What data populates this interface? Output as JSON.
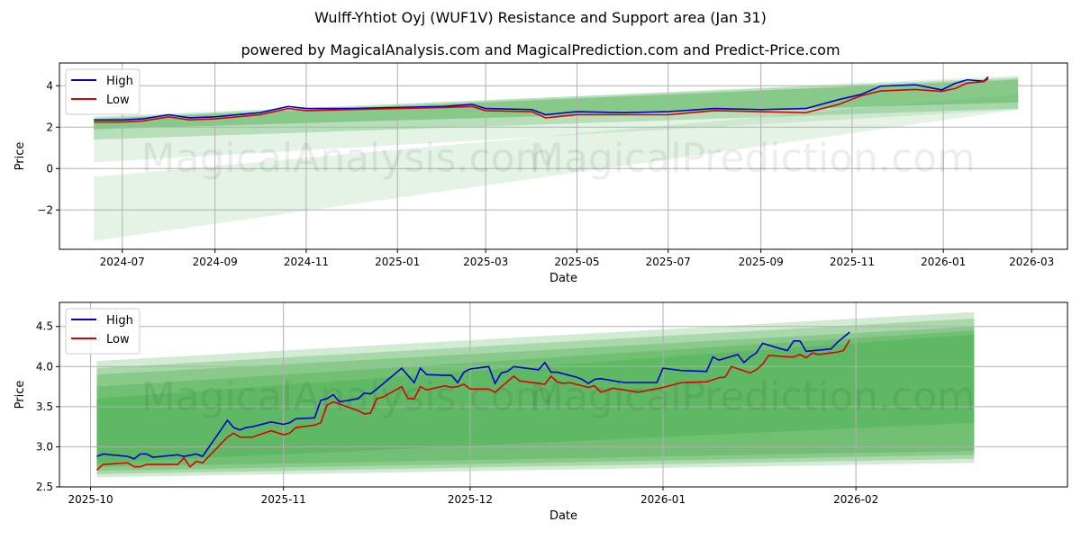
{
  "title": "Wulff-Yhtiot Oyj (WUF1V) Resistance and Support area (Jan 31)",
  "subtitle": "powered by MagicalAnalysis.com and MagicalPrediction.com and Predict-Price.com",
  "watermarks": [
    "MagicalAnalysis.com",
    "MagicalPrediction.com"
  ],
  "colors": {
    "high": "#0000cc",
    "low": "#dd0000",
    "band": "#4caf50"
  },
  "chart_data": [
    {
      "type": "line",
      "xlabel": "Date",
      "ylabel": "Price",
      "ylim": [
        -3.9,
        5.1
      ],
      "xlim": [
        "2024-05-20",
        "2026-03-25"
      ],
      "yticks": [
        -2,
        0,
        2,
        4
      ],
      "xticks": [
        "2024-07",
        "2024-09",
        "2024-11",
        "2025-01",
        "2025-03",
        "2025-05",
        "2025-07",
        "2025-09",
        "2025-11",
        "2026-01",
        "2026-03"
      ],
      "legend": {
        "position": "top-left",
        "entries": [
          "High",
          "Low"
        ]
      },
      "grid": true,
      "bands": [
        {
          "start": "2024-06-12",
          "end": "2026-02-20",
          "from": [
            -3.5,
            -0.4
          ],
          "to": [
            2.85,
            3.6
          ],
          "opacity": 0.15
        },
        {
          "start": "2024-06-12",
          "end": "2026-02-20",
          "from": [
            0.3,
            2.4
          ],
          "to": [
            2.85,
            4.5
          ],
          "opacity": 0.15
        },
        {
          "start": "2024-06-12",
          "end": "2026-02-20",
          "from": [
            1.4,
            2.5
          ],
          "to": [
            2.9,
            4.4
          ],
          "opacity": 0.3
        },
        {
          "start": "2024-06-12",
          "end": "2026-02-20",
          "from": [
            1.9,
            2.4
          ],
          "to": [
            3.2,
            4.3
          ],
          "opacity": 0.45
        }
      ],
      "series": [
        {
          "name": "High",
          "points": [
            [
              "2024-06-12",
              2.35
            ],
            [
              "2024-07-01",
              2.35
            ],
            [
              "2024-07-15",
              2.4
            ],
            [
              "2024-08-01",
              2.6
            ],
            [
              "2024-08-15",
              2.45
            ],
            [
              "2024-09-01",
              2.5
            ],
            [
              "2024-10-01",
              2.7
            ],
            [
              "2024-10-20",
              3.0
            ],
            [
              "2024-11-01",
              2.9
            ],
            [
              "2024-12-01",
              2.9
            ],
            [
              "2025-01-01",
              2.95
            ],
            [
              "2025-02-01",
              3.0
            ],
            [
              "2025-02-20",
              3.1
            ],
            [
              "2025-03-01",
              2.9
            ],
            [
              "2025-04-01",
              2.85
            ],
            [
              "2025-04-10",
              2.6
            ],
            [
              "2025-05-01",
              2.75
            ],
            [
              "2025-06-01",
              2.7
            ],
            [
              "2025-07-01",
              2.75
            ],
            [
              "2025-08-01",
              2.9
            ],
            [
              "2025-09-01",
              2.85
            ],
            [
              "2025-10-01",
              2.9
            ],
            [
              "2025-10-23",
              3.33
            ],
            [
              "2025-11-07",
              3.58
            ],
            [
              "2025-11-20",
              3.98
            ],
            [
              "2025-12-13",
              4.05
            ],
            [
              "2025-12-31",
              3.8
            ],
            [
              "2026-01-09",
              4.12
            ],
            [
              "2026-01-17",
              4.29
            ],
            [
              "2026-01-28",
              4.22
            ],
            [
              "2026-01-31",
              4.43
            ]
          ]
        },
        {
          "name": "Low",
          "points": [
            [
              "2024-06-12",
              2.25
            ],
            [
              "2024-07-01",
              2.25
            ],
            [
              "2024-07-15",
              2.3
            ],
            [
              "2024-08-01",
              2.5
            ],
            [
              "2024-08-15",
              2.35
            ],
            [
              "2024-09-01",
              2.4
            ],
            [
              "2024-10-01",
              2.6
            ],
            [
              "2024-10-20",
              2.9
            ],
            [
              "2024-11-01",
              2.8
            ],
            [
              "2024-12-01",
              2.85
            ],
            [
              "2025-01-01",
              2.9
            ],
            [
              "2025-02-01",
              2.95
            ],
            [
              "2025-02-20",
              3.0
            ],
            [
              "2025-03-01",
              2.8
            ],
            [
              "2025-04-01",
              2.75
            ],
            [
              "2025-04-10",
              2.45
            ],
            [
              "2025-05-01",
              2.6
            ],
            [
              "2025-06-01",
              2.6
            ],
            [
              "2025-07-01",
              2.6
            ],
            [
              "2025-08-01",
              2.8
            ],
            [
              "2025-09-01",
              2.75
            ],
            [
              "2025-10-01",
              2.7
            ],
            [
              "2025-10-23",
              3.1
            ],
            [
              "2025-11-07",
              3.52
            ],
            [
              "2025-11-20",
              3.75
            ],
            [
              "2025-12-13",
              3.82
            ],
            [
              "2025-12-31",
              3.73
            ],
            [
              "2026-01-09",
              3.87
            ],
            [
              "2026-01-17",
              4.13
            ],
            [
              "2026-01-28",
              4.2
            ],
            [
              "2026-01-31",
              4.33
            ]
          ]
        }
      ]
    },
    {
      "type": "line",
      "xlabel": "Date",
      "ylabel": "Price",
      "ylim": [
        2.5,
        4.8
      ],
      "xlim": [
        "2025-09-26",
        "2026-03-07"
      ],
      "yticks": [
        2.5,
        3.0,
        3.5,
        4.0,
        4.5
      ],
      "xticks": [
        "2025-10",
        "2025-11",
        "2025-12",
        "2026-01",
        "2026-02"
      ],
      "legend": {
        "position": "top-left",
        "entries": [
          "High",
          "Low"
        ]
      },
      "grid": true,
      "bands": [
        {
          "start": "2025-10-02",
          "end": "2026-02-20",
          "from": [
            2.62,
            4.07
          ],
          "to": [
            2.8,
            4.68
          ],
          "opacity": 0.25
        },
        {
          "start": "2025-10-02",
          "end": "2026-02-20",
          "from": [
            2.66,
            3.98
          ],
          "to": [
            2.85,
            4.6
          ],
          "opacity": 0.3
        },
        {
          "start": "2025-10-02",
          "end": "2026-02-20",
          "from": [
            2.7,
            3.9
          ],
          "to": [
            2.9,
            4.5
          ],
          "opacity": 0.35
        },
        {
          "start": "2025-10-02",
          "end": "2026-02-20",
          "from": [
            2.75,
            3.75
          ],
          "to": [
            2.95,
            4.45
          ],
          "opacity": 0.4
        },
        {
          "start": "2025-10-02",
          "end": "2026-02-20",
          "from": [
            2.8,
            3.6
          ],
          "to": [
            3.3,
            4.4
          ],
          "opacity": 0.45
        }
      ],
      "series": [
        {
          "name": "High",
          "points": [
            [
              "2025-10-02",
              2.88
            ],
            [
              "2025-10-03",
              2.91
            ],
            [
              "2025-10-07",
              2.88
            ],
            [
              "2025-10-08",
              2.85
            ],
            [
              "2025-10-09",
              2.91
            ],
            [
              "2025-10-10",
              2.91
            ],
            [
              "2025-10-11",
              2.87
            ],
            [
              "2025-10-15",
              2.9
            ],
            [
              "2025-10-16",
              2.88
            ],
            [
              "2025-10-18",
              2.91
            ],
            [
              "2025-10-19",
              2.88
            ],
            [
              "2025-10-23",
              3.33
            ],
            [
              "2025-10-24",
              3.24
            ],
            [
              "2025-10-25",
              3.21
            ],
            [
              "2025-10-26",
              3.24
            ],
            [
              "2025-10-27",
              3.25
            ],
            [
              "2025-10-30",
              3.31
            ],
            [
              "2025-11-01",
              3.28
            ],
            [
              "2025-11-02",
              3.3
            ],
            [
              "2025-11-03",
              3.35
            ],
            [
              "2025-11-06",
              3.36
            ],
            [
              "2025-11-07",
              3.58
            ],
            [
              "2025-11-08",
              3.6
            ],
            [
              "2025-11-09",
              3.65
            ],
            [
              "2025-11-10",
              3.56
            ],
            [
              "2025-11-13",
              3.6
            ],
            [
              "2025-11-14",
              3.67
            ],
            [
              "2025-11-15",
              3.66
            ],
            [
              "2025-11-16",
              3.72
            ],
            [
              "2025-11-20",
              3.98
            ],
            [
              "2025-11-22",
              3.8
            ],
            [
              "2025-11-23",
              3.98
            ],
            [
              "2025-11-24",
              3.9
            ],
            [
              "2025-11-27",
              3.89
            ],
            [
              "2025-11-28",
              3.89
            ],
            [
              "2025-11-29",
              3.8
            ],
            [
              "2025-11-30",
              3.93
            ],
            [
              "2025-12-01",
              3.97
            ],
            [
              "2025-12-04",
              4.0
            ],
            [
              "2025-12-05",
              3.79
            ],
            [
              "2025-12-06",
              3.92
            ],
            [
              "2025-12-07",
              3.94
            ],
            [
              "2025-12-08",
              4.0
            ],
            [
              "2025-12-12",
              3.96
            ],
            [
              "2025-12-13",
              4.05
            ],
            [
              "2025-12-14",
              3.93
            ],
            [
              "2025-12-15",
              3.93
            ],
            [
              "2025-12-18",
              3.87
            ],
            [
              "2025-12-19",
              3.84
            ],
            [
              "2025-12-20",
              3.79
            ],
            [
              "2025-12-21",
              3.84
            ],
            [
              "2025-12-22",
              3.85
            ],
            [
              "2025-12-25",
              3.81
            ],
            [
              "2025-12-26",
              3.8
            ],
            [
              "2025-12-31",
              3.8
            ],
            [
              "2026-01-01",
              3.98
            ],
            [
              "2026-01-04",
              3.95
            ],
            [
              "2026-01-08",
              3.94
            ],
            [
              "2026-01-09",
              4.12
            ],
            [
              "2026-01-10",
              4.08
            ],
            [
              "2026-01-13",
              4.15
            ],
            [
              "2026-01-14",
              4.05
            ],
            [
              "2026-01-15",
              4.12
            ],
            [
              "2026-01-16",
              4.17
            ],
            [
              "2026-01-17",
              4.29
            ],
            [
              "2026-01-20",
              4.22
            ],
            [
              "2026-01-21",
              4.2
            ],
            [
              "2026-01-22",
              4.32
            ],
            [
              "2026-01-23",
              4.32
            ],
            [
              "2026-01-24",
              4.19
            ],
            [
              "2026-01-28",
              4.22
            ],
            [
              "2026-01-29",
              4.3
            ],
            [
              "2026-01-31",
              4.43
            ]
          ]
        },
        {
          "name": "Low",
          "points": [
            [
              "2025-10-02",
              2.71
            ],
            [
              "2025-10-03",
              2.78
            ],
            [
              "2025-10-07",
              2.8
            ],
            [
              "2025-10-08",
              2.75
            ],
            [
              "2025-10-09",
              2.75
            ],
            [
              "2025-10-10",
              2.78
            ],
            [
              "2025-10-15",
              2.78
            ],
            [
              "2025-10-16",
              2.86
            ],
            [
              "2025-10-17",
              2.75
            ],
            [
              "2025-10-18",
              2.82
            ],
            [
              "2025-10-19",
              2.8
            ],
            [
              "2025-10-23",
              3.12
            ],
            [
              "2025-10-24",
              3.17
            ],
            [
              "2025-10-25",
              3.12
            ],
            [
              "2025-10-27",
              3.12
            ],
            [
              "2025-10-30",
              3.2
            ],
            [
              "2025-11-01",
              3.15
            ],
            [
              "2025-11-02",
              3.17
            ],
            [
              "2025-11-03",
              3.24
            ],
            [
              "2025-11-06",
              3.27
            ],
            [
              "2025-11-07",
              3.3
            ],
            [
              "2025-11-08",
              3.52
            ],
            [
              "2025-11-09",
              3.56
            ],
            [
              "2025-11-13",
              3.45
            ],
            [
              "2025-11-14",
              3.41
            ],
            [
              "2025-11-15",
              3.42
            ],
            [
              "2025-11-16",
              3.6
            ],
            [
              "2025-11-17",
              3.62
            ],
            [
              "2025-11-20",
              3.75
            ],
            [
              "2025-11-21",
              3.6
            ],
            [
              "2025-11-22",
              3.6
            ],
            [
              "2025-11-23",
              3.75
            ],
            [
              "2025-11-24",
              3.71
            ],
            [
              "2025-11-27",
              3.76
            ],
            [
              "2025-11-28",
              3.74
            ],
            [
              "2025-11-29",
              3.75
            ],
            [
              "2025-11-30",
              3.78
            ],
            [
              "2025-12-01",
              3.72
            ],
            [
              "2025-12-04",
              3.72
            ],
            [
              "2025-12-05",
              3.68
            ],
            [
              "2025-12-08",
              3.88
            ],
            [
              "2025-12-09",
              3.82
            ],
            [
              "2025-12-13",
              3.78
            ],
            [
              "2025-12-14",
              3.88
            ],
            [
              "2025-12-15",
              3.81
            ],
            [
              "2025-12-16",
              3.79
            ],
            [
              "2025-12-17",
              3.8
            ],
            [
              "2025-12-20",
              3.74
            ],
            [
              "2025-12-21",
              3.76
            ],
            [
              "2025-12-22",
              3.68
            ],
            [
              "2025-12-24",
              3.73
            ],
            [
              "2025-12-28",
              3.68
            ],
            [
              "2026-01-01",
              3.74
            ],
            [
              "2026-01-04",
              3.8
            ],
            [
              "2026-01-08",
              3.81
            ],
            [
              "2026-01-10",
              3.86
            ],
            [
              "2026-01-11",
              3.87
            ],
            [
              "2026-01-12",
              4.0
            ],
            [
              "2026-01-15",
              3.92
            ],
            [
              "2026-01-16",
              3.96
            ],
            [
              "2026-01-17",
              4.03
            ],
            [
              "2026-01-18",
              4.14
            ],
            [
              "2026-01-21",
              4.12
            ],
            [
              "2026-01-22",
              4.12
            ],
            [
              "2026-01-23",
              4.15
            ],
            [
              "2026-01-24",
              4.11
            ],
            [
              "2026-01-25",
              4.17
            ],
            [
              "2026-01-26",
              4.15
            ],
            [
              "2026-01-29",
              4.18
            ],
            [
              "2026-01-30",
              4.2
            ],
            [
              "2026-01-31",
              4.33
            ]
          ]
        }
      ]
    }
  ]
}
